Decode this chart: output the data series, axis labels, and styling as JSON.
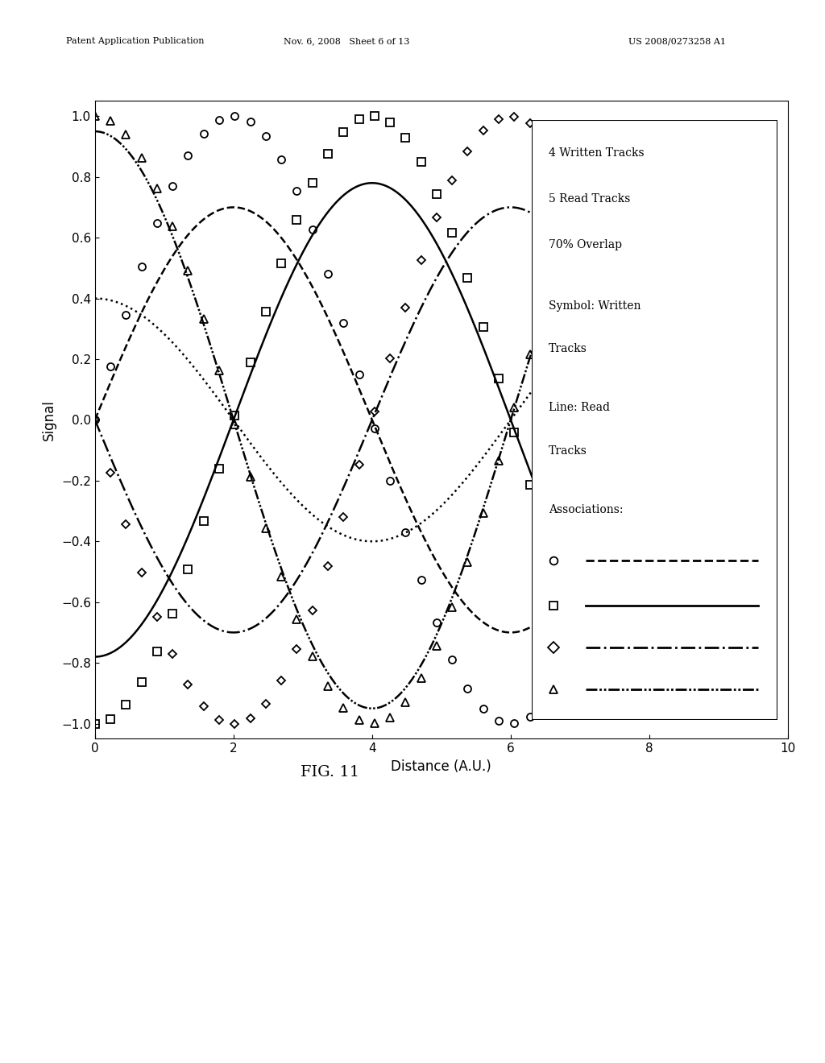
{
  "page_header_left": "Patent Application Publication",
  "page_header_mid": "Nov. 6, 2008   Sheet 6 of 13",
  "page_header_right": "US 2008/0273258 A1",
  "xlabel": "Distance (A.U.)",
  "ylabel": "Signal",
  "xlim": [
    0,
    10
  ],
  "ylim": [
    -1.05,
    1.05
  ],
  "yticks": [
    -1,
    -0.8,
    -0.6,
    -0.4,
    -0.2,
    0,
    0.2,
    0.4,
    0.6,
    0.8,
    1
  ],
  "xticks": [
    0,
    2,
    4,
    6,
    8,
    10
  ],
  "fig_label": "FIG. 11",
  "T": 8.0,
  "read_tracks": [
    {
      "phi": 2.0,
      "A": 0.7,
      "ls": "dashed",
      "lw": 1.8
    },
    {
      "phi": 4.0,
      "A": 0.78,
      "ls": "solid",
      "lw": 1.8
    },
    {
      "phi": 6.0,
      "A": 0.7,
      "ls": "dashdot",
      "lw": 1.8
    },
    {
      "phi": 0.0,
      "A": 0.95,
      "ls": "dashdotdot",
      "lw": 1.8
    },
    {
      "phi": 8.0,
      "A": 0.4,
      "ls": "dotted",
      "lw": 1.8
    }
  ],
  "written_tracks": [
    {
      "phi": 2.0,
      "A": 1.0,
      "marker": "o",
      "ms": 6.5
    },
    {
      "phi": 4.0,
      "A": 1.0,
      "marker": "s",
      "ms": 6.5
    },
    {
      "phi": 6.0,
      "A": 1.0,
      "marker": "D",
      "ms": 5.5
    },
    {
      "phi": 0.0,
      "A": 1.0,
      "marker": "^",
      "ms": 7.0
    }
  ],
  "n_written_points": 30,
  "legend_info_lines": [
    "4 Written Tracks",
    "5 Read Tracks",
    "70% Overlap"
  ],
  "legend_symbol_text1": "Symbol: Written",
  "legend_symbol_text2": "Tracks",
  "legend_line_text1": "Line: Read",
  "legend_line_text2": "Tracks",
  "legend_assoc_text": "Associations:",
  "assoc_entries": [
    {
      "marker": "o",
      "ls": "dashed"
    },
    {
      "marker": "s",
      "ls": "solid"
    },
    {
      "marker": "D",
      "ls": "dashdot"
    },
    {
      "marker": "^",
      "ls": "dashdotdot"
    }
  ]
}
